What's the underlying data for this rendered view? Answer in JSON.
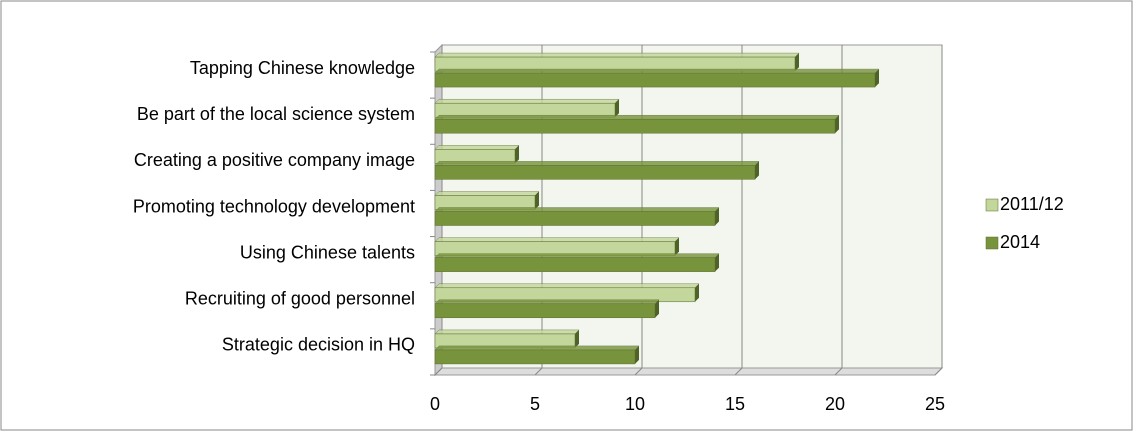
{
  "chart_data": {
    "type": "bar",
    "orientation": "horizontal",
    "categories": [
      "Tapping Chinese knowledge",
      "Be part of the local science system",
      "Creating a positive company image",
      "Promoting technology development",
      "Using Chinese talents",
      "Recruiting of good personnel",
      "Strategic decision in HQ"
    ],
    "series": [
      {
        "name": "2011/12",
        "color": "#c3d69b",
        "values": [
          18,
          9,
          4,
          5,
          12,
          13,
          7
        ]
      },
      {
        "name": "2014",
        "color": "#77933c",
        "values": [
          22,
          20,
          16,
          14,
          14,
          11,
          10
        ]
      }
    ],
    "xlim": [
      0,
      25
    ],
    "xticks": [
      0,
      5,
      10,
      15,
      20,
      25
    ],
    "grid": true,
    "legend": "right"
  }
}
